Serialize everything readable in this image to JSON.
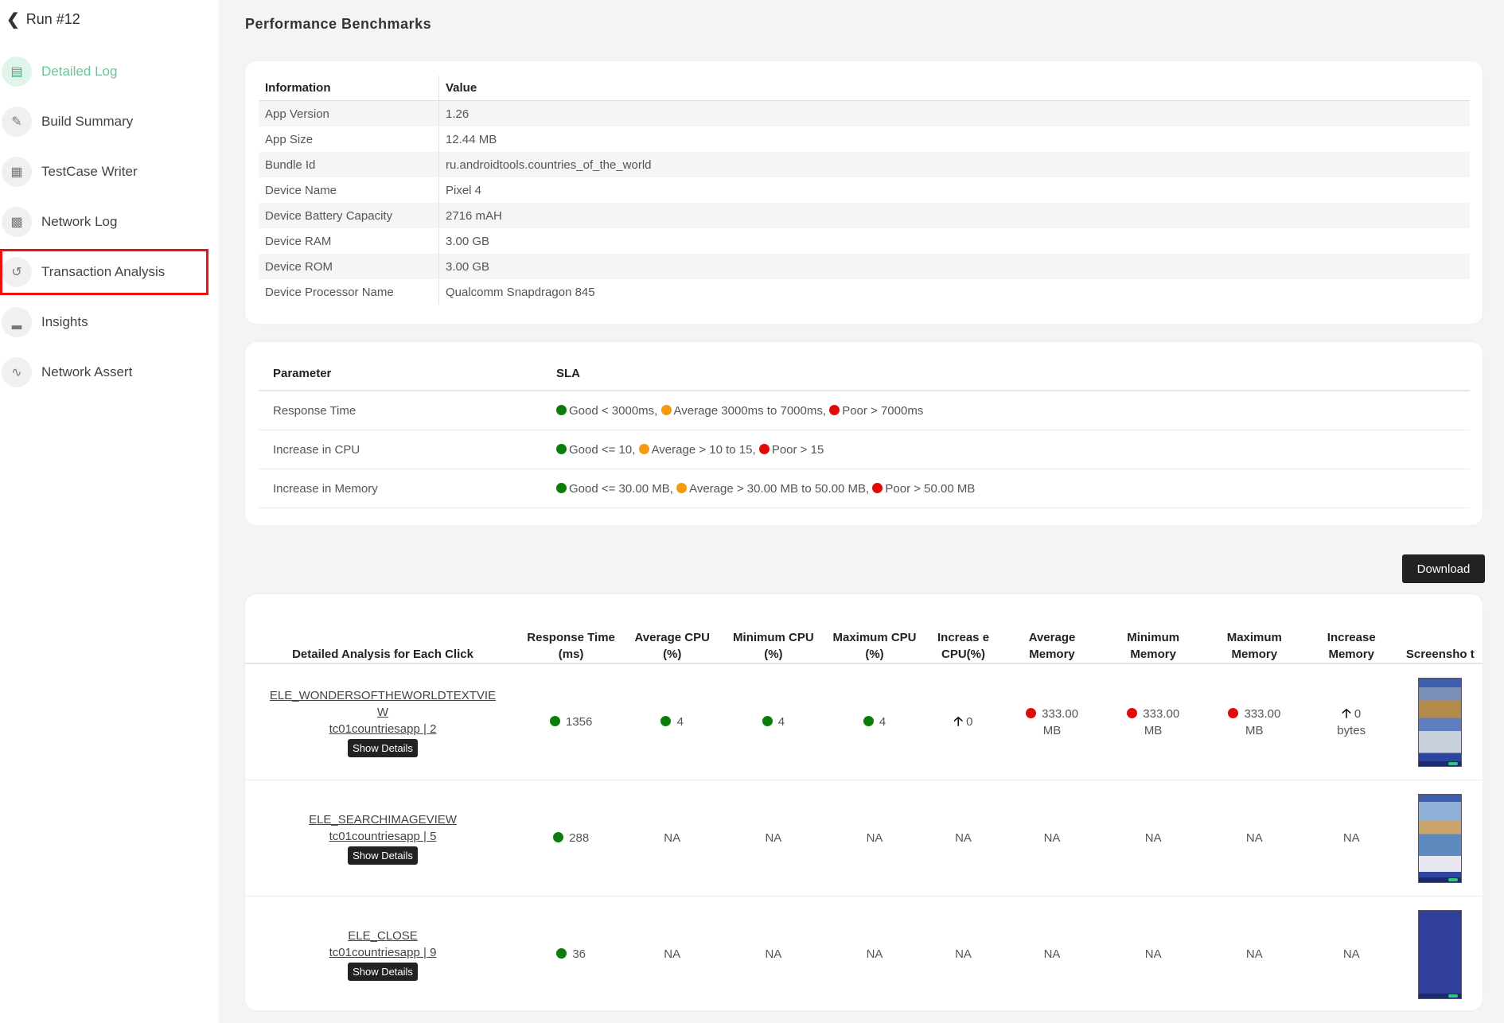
{
  "back": {
    "label": "Run #12"
  },
  "nav": [
    {
      "label": "Detailed Log",
      "icon": "document-icon"
    },
    {
      "label": "Build Summary",
      "icon": "pen-icon"
    },
    {
      "label": "TestCase Writer",
      "icon": "testcase-icon"
    },
    {
      "label": "Network Log",
      "icon": "chart-icon"
    },
    {
      "label": "Transaction Analysis",
      "icon": "transaction-icon"
    },
    {
      "label": "Insights",
      "icon": "insights-icon"
    },
    {
      "label": "Network Assert",
      "icon": "pulse-icon"
    }
  ],
  "page_title": "Performance Benchmarks",
  "info": {
    "headers": [
      "Information",
      "Value"
    ],
    "rows": [
      [
        "App Version",
        "1.26"
      ],
      [
        "App Size",
        "12.44 MB"
      ],
      [
        "Bundle Id",
        "ru.androidtools.countries_of_the_world"
      ],
      [
        "Device Name",
        "Pixel 4"
      ],
      [
        "Device Battery Capacity",
        "2716 mAH"
      ],
      [
        "Device RAM",
        "3.00 GB"
      ],
      [
        "Device ROM",
        "3.00 GB"
      ],
      [
        "Device Processor Name",
        "Qualcomm Snapdragon 845"
      ]
    ]
  },
  "sla": {
    "headers": [
      "Parameter",
      "SLA"
    ],
    "rows": [
      {
        "param": "Response Time",
        "good": "Good < 3000ms,",
        "avg": "Average 3000ms to 7000ms,",
        "poor": "Poor > 7000ms"
      },
      {
        "param": "Increase in CPU",
        "good": "Good <= 10,",
        "avg": "Average > 10 to 15,",
        "poor": "Poor > 15"
      },
      {
        "param": "Increase in Memory",
        "good": "Good <= 30.00 MB,",
        "avg": "Average > 30.00 MB to 50.00 MB,",
        "poor": "Poor > 50.00 MB"
      }
    ]
  },
  "download_label": "Download",
  "details": {
    "headers": [
      "Detailed Analysis for Each Click",
      "Response Time (ms)",
      "Average CPU (%)",
      "Minimum CPU (%)",
      "Maximum CPU (%)",
      "Increas e CPU(%)",
      "Average Memory",
      "Minimum Memory",
      "Maximum Memory",
      "Increase Memory",
      "Screensho t"
    ],
    "show_details": "Show Details",
    "rows": [
      {
        "el1": "ELE_WONDERSOFTHEWORLDTEXTVIE",
        "el2": "W",
        "tc": "tc01countriesapp | 2",
        "resp": "1356",
        "avgcpu": "4",
        "mincpu": "4",
        "maxcpu": "4",
        "inccpu": "0",
        "avgmem": "333.00 MB",
        "minmem": "333.00 MB",
        "maxmem": "333.00 MB",
        "incmem": "0 bytes"
      },
      {
        "el1": "ELE_SEARCHIMAGEVIEW",
        "el2": "",
        "tc": "tc01countriesapp | 5",
        "resp": "288",
        "avgcpu": "NA",
        "mincpu": "NA",
        "maxcpu": "NA",
        "inccpu": "NA",
        "avgmem": "NA",
        "minmem": "NA",
        "maxmem": "NA",
        "incmem": "NA"
      },
      {
        "el1": "ELE_CLOSE",
        "el2": "",
        "tc": "tc01countriesapp | 9",
        "resp": "36",
        "avgcpu": "NA",
        "mincpu": "NA",
        "maxcpu": "NA",
        "inccpu": "NA",
        "avgmem": "NA",
        "minmem": "NA",
        "maxmem": "NA",
        "incmem": "NA"
      }
    ]
  }
}
